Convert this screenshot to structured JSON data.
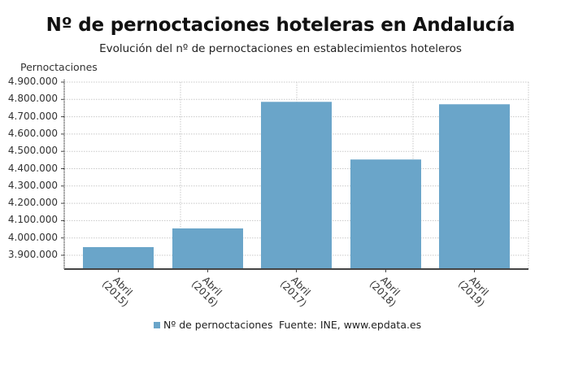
{
  "header": {
    "title": "Nº de pernoctaciones hoteleras en Andalucía",
    "subtitle": "Evolución del nº de pernoctaciones en establecimientos hoteleros"
  },
  "axis": {
    "ylabel": "Pernoctaciones",
    "yticks": [
      "4.900.000",
      "4.800.000",
      "4.700.000",
      "4.600.000",
      "4.500.000",
      "4.400.000",
      "4.300.000",
      "4.200.000",
      "4.100.000",
      "4.000.000",
      "3.900.000"
    ]
  },
  "legend": {
    "series_label": "Nº de pernoctaciones",
    "source": "Fuente: INE, www.epdata.es"
  },
  "colors": {
    "bar": "#6aa5c9",
    "axis": "#444444",
    "grid": "#c8c8c8"
  },
  "chart_data": {
    "type": "bar",
    "title": "Nº de pernoctaciones hoteleras en Andalucía",
    "subtitle": "Evolución del nº de pernoctaciones en establecimientos hoteleros",
    "xlabel": "",
    "ylabel": "Pernoctaciones",
    "categories": [
      "Abril (2015)",
      "Abril (2016)",
      "Abril (2017)",
      "Abril (2018)",
      "Abril (2019)"
    ],
    "category_lines": [
      [
        "Abril",
        "(2015)"
      ],
      [
        "Abril",
        "(2016)"
      ],
      [
        "Abril",
        "(2017)"
      ],
      [
        "Abril",
        "(2018)"
      ],
      [
        "Abril",
        "(2019)"
      ]
    ],
    "series": [
      {
        "name": "Nº de pernoctaciones",
        "values": [
          3947000,
          4055000,
          4786000,
          4453000,
          4772000
        ]
      }
    ],
    "ylim": [
      3820000,
      4900000
    ],
    "yticks": [
      3900000,
      4000000,
      4100000,
      4200000,
      4300000,
      4400000,
      4500000,
      4600000,
      4700000,
      4800000,
      4900000
    ],
    "grid": true,
    "legend_position": "bottom",
    "source": "Fuente: INE, www.epdata.es"
  }
}
